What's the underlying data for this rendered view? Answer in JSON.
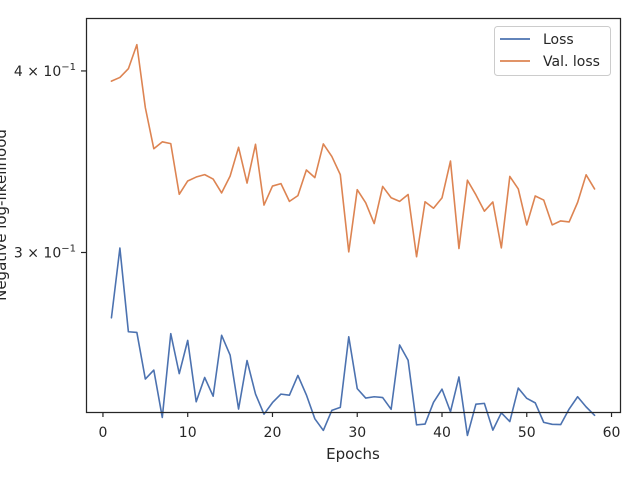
{
  "chart_data": {
    "type": "line",
    "xlabel": "Epochs",
    "ylabel": "Negative log-likelihood",
    "yscale": "log",
    "xlim": [
      -2,
      61
    ],
    "ylim": [
      0.233,
      0.435
    ],
    "x_ticks": [
      0,
      10,
      20,
      30,
      40,
      50,
      60
    ],
    "y_ticks": [
      {
        "value": 0.4,
        "label": "4 × 10⁻¹"
      },
      {
        "value": 0.3,
        "label": "3 × 10⁻¹"
      }
    ],
    "grid": false,
    "legend_position": "top-right",
    "x": [
      1,
      2,
      3,
      4,
      5,
      6,
      7,
      8,
      9,
      10,
      11,
      12,
      13,
      14,
      15,
      16,
      17,
      18,
      19,
      20,
      21,
      22,
      23,
      24,
      25,
      26,
      27,
      28,
      29,
      30,
      31,
      32,
      33,
      34,
      35,
      36,
      37,
      38,
      39,
      40,
      41,
      42,
      43,
      44,
      45,
      46,
      47,
      48,
      49,
      50,
      51,
      52,
      53,
      54,
      55,
      56,
      57,
      58
    ],
    "series": [
      {
        "name": "Loss",
        "color": "#4c72b0",
        "values": [
          0.2705,
          0.3021,
          0.2646,
          0.2643,
          0.2455,
          0.249,
          0.231,
          0.2638,
          0.2476,
          0.261,
          0.2368,
          0.2461,
          0.2389,
          0.2631,
          0.255,
          0.2341,
          0.2528,
          0.2397,
          0.2322,
          0.2365,
          0.2397,
          0.2393,
          0.2469,
          0.2394,
          0.2305,
          0.2263,
          0.2336,
          0.2347,
          0.2625,
          0.2418,
          0.2382,
          0.2387,
          0.2384,
          0.234,
          0.2591,
          0.2529,
          0.2283,
          0.2286,
          0.2366,
          0.2416,
          0.2331,
          0.2463,
          0.2245,
          0.2359,
          0.2362,
          0.2264,
          0.2327,
          0.2295,
          0.242,
          0.2381,
          0.2364,
          0.2292,
          0.2285,
          0.2284,
          0.2341,
          0.2387,
          0.2349,
          0.2318
        ]
      },
      {
        "name": "Val. loss",
        "color": "#dd8452",
        "values": [
          0.3936,
          0.3959,
          0.4014,
          0.417,
          0.3774,
          0.3536,
          0.3575,
          0.3565,
          0.329,
          0.336,
          0.3381,
          0.3394,
          0.337,
          0.3297,
          0.3386,
          0.3544,
          0.3349,
          0.3561,
          0.3234,
          0.3333,
          0.3346,
          0.3253,
          0.3283,
          0.3419,
          0.3378,
          0.3563,
          0.3493,
          0.3394,
          0.3003,
          0.3314,
          0.3246,
          0.3141,
          0.3331,
          0.3272,
          0.3253,
          0.3289,
          0.298,
          0.3251,
          0.3218,
          0.3271,
          0.3468,
          0.3019,
          0.3364,
          0.3287,
          0.3203,
          0.325,
          0.3022,
          0.3384,
          0.3318,
          0.3134,
          0.3281,
          0.326,
          0.3134,
          0.3154,
          0.3149,
          0.3248,
          0.3393,
          0.3318
        ]
      }
    ]
  }
}
